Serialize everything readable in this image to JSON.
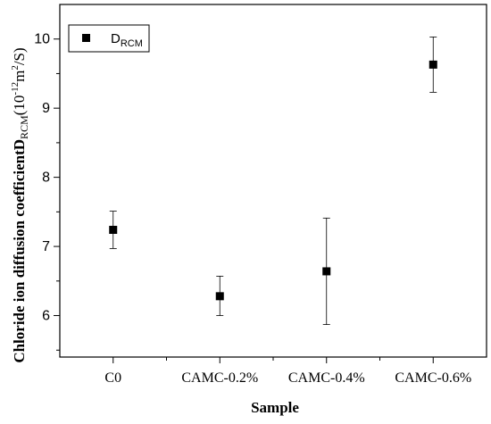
{
  "chart_data": {
    "type": "scatter",
    "title": "",
    "xlabel": "Sample",
    "ylabel": {
      "main": "Chloride ion diffusion coefficientD",
      "sub": "RCM",
      "open": "(10",
      "exp1": "-12",
      "mid": "m",
      "exp2": "2",
      "close": "/S)"
    },
    "categories": [
      "C0",
      "CAMC-0.2%",
      "CAMC-0.4%",
      "CAMC-0.6%"
    ],
    "ylim": [
      5.4,
      10.5
    ],
    "yticks": [
      6,
      7,
      8,
      9,
      10
    ],
    "grid": false,
    "legend_position": "top-left",
    "series": [
      {
        "name": {
          "main": "D",
          "sub": "RCM"
        },
        "marker": "square",
        "color": "#000000",
        "values": [
          7.24,
          6.28,
          6.64,
          9.63
        ],
        "error_low": [
          6.97,
          6.0,
          5.87,
          9.23
        ],
        "error_high": [
          7.51,
          6.57,
          7.41,
          10.03
        ]
      }
    ]
  }
}
